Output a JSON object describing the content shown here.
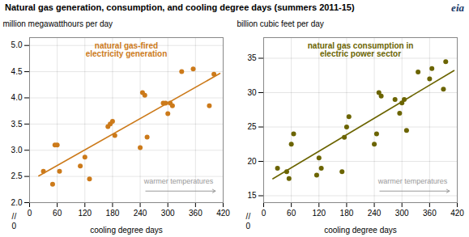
{
  "chart_data": [
    {
      "type": "scatter",
      "title": "Natural gas generation, consumption, and cooling degree days (summers 2011-15)",
      "xlabel": "cooling degree days",
      "ylabel": "million megawatthours per day",
      "xlim": [
        0,
        420
      ],
      "xticks": [
        0,
        60,
        120,
        180,
        240,
        300,
        360,
        420
      ],
      "ylim": [
        2.0,
        5.15
      ],
      "yticks": [
        {
          "value": 2.0,
          "label": "2.0"
        },
        2.5,
        {
          "value": 3.0,
          "label": "3.0"
        },
        3.5,
        {
          "value": 4.0,
          "label": "4.0"
        },
        4.5,
        {
          "value": 5.0,
          "label": "5.0"
        }
      ],
      "grid": true,
      "series": [
        {
          "name": "natural gas-fired\nelectricity generation",
          "color": "#CC7A1A",
          "x": [
            30,
            50,
            55,
            60,
            65,
            110,
            120,
            130,
            170,
            175,
            180,
            185,
            240,
            245,
            250,
            255,
            290,
            295,
            300,
            305,
            310,
            330,
            355,
            390,
            400
          ],
          "values": [
            2.6,
            2.35,
            3.1,
            3.1,
            2.6,
            2.7,
            2.87,
            2.45,
            3.45,
            3.5,
            3.55,
            3.28,
            3.05,
            4.1,
            4.05,
            3.25,
            3.9,
            3.9,
            3.7,
            3.9,
            3.85,
            4.5,
            4.55,
            3.85,
            4.45
          ]
        },
        {
          "type": "line",
          "color": "#CC7A1A",
          "x": [
            20,
            413
          ],
          "values": [
            2.509,
            4.466
          ]
        }
      ],
      "annotations": [
        {
          "text": "warmer temperatures",
          "color": "#999999"
        },
        {
          "text": "//"
        },
        {
          "text": "0"
        },
        {
          "text": "eia",
          "color": "#1A3A6B"
        }
      ]
    },
    {
      "type": "scatter",
      "xlabel": "cooling degree days",
      "ylabel": "billion cubic feet per day",
      "xlim": [
        0,
        420
      ],
      "xticks": [
        0,
        60,
        120,
        180,
        240,
        300,
        360,
        420
      ],
      "ylim": [
        14,
        38
      ],
      "yticks": [
        15,
        20,
        25,
        30,
        35
      ],
      "grid": true,
      "series": [
        {
          "name": "natural gas consumption in\nelectric power sector",
          "color": "#6B6400",
          "x": [
            30,
            50,
            55,
            60,
            65,
            115,
            120,
            125,
            170,
            175,
            180,
            185,
            240,
            245,
            250,
            255,
            285,
            295,
            300,
            305,
            310,
            335,
            360,
            365,
            390,
            395
          ],
          "values": [
            19.0,
            18.5,
            17.5,
            22.5,
            24.0,
            18.0,
            20.5,
            19.0,
            18.5,
            23.5,
            25.0,
            26.5,
            22.5,
            24.0,
            30.0,
            29.5,
            29.0,
            27.0,
            28.5,
            29.0,
            24.5,
            33.0,
            32.0,
            33.5,
            30.5,
            34.5
          ]
        },
        {
          "type": "line",
          "color": "#6B6400",
          "x": [
            20,
            413
          ],
          "values": [
            17.468,
            33.206
          ]
        }
      ],
      "annotations": [
        {
          "text": "warmer temperatures",
          "color": "#999999"
        },
        {
          "text": "//"
        },
        {
          "text": "0"
        }
      ]
    }
  ]
}
